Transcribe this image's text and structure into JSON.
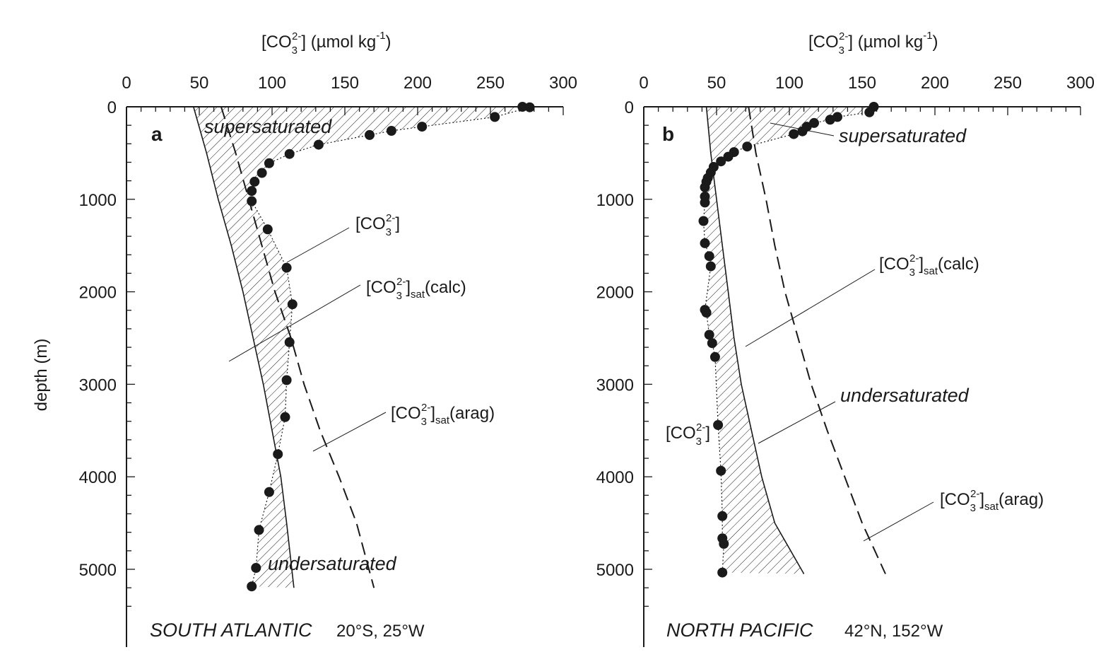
{
  "chart_data": [
    {
      "type": "scatter",
      "panel_label": "a",
      "location": "SOUTH ATLANTIC",
      "coordinates": "20°S, 25°W",
      "xlabel": "[CO3 2-] (µmol kg-1)",
      "ylabel": "depth (m)",
      "xlim": [
        0,
        300
      ],
      "ylim": [
        0,
        5500
      ],
      "y_inverted": true,
      "x_axis_position": "top",
      "x_ticks": [
        0,
        50,
        100,
        150,
        200,
        250,
        300
      ],
      "y_ticks": [
        0,
        1000,
        2000,
        3000,
        4000,
        5000
      ],
      "series": [
        {
          "name": "[CO3 2-]",
          "style": "filled circles joined by dotted line",
          "points": [
            [
              277,
              5
            ],
            [
              272,
              0
            ],
            [
              253,
              110
            ],
            [
              203,
              215
            ],
            [
              182,
              260
            ],
            [
              167,
              305
            ],
            [
              132,
              410
            ],
            [
              112,
              510
            ],
            [
              98,
              610
            ],
            [
              93,
              715
            ],
            [
              88,
              810
            ],
            [
              86,
              910
            ],
            [
              86,
              1020
            ],
            [
              97,
              1325
            ],
            [
              110,
              1740
            ],
            [
              114,
              2135
            ],
            [
              112,
              2545
            ],
            [
              110,
              2955
            ],
            [
              109,
              3355
            ],
            [
              104,
              3755
            ],
            [
              98,
              4165
            ],
            [
              91,
              4575
            ],
            [
              89,
              4985
            ],
            [
              86,
              5185
            ]
          ]
        },
        {
          "name": "[CO3 2-]sat(calc)",
          "style": "solid line",
          "points": [
            [
              46,
              0
            ],
            [
              55,
              500
            ],
            [
              63,
              1000
            ],
            [
              72,
              1500
            ],
            [
              80,
              2000
            ],
            [
              87,
              2500
            ],
            [
              94,
              3000
            ],
            [
              100,
              3500
            ],
            [
              106,
              4000
            ],
            [
              110,
              4500
            ],
            [
              115,
              5200
            ]
          ]
        },
        {
          "name": "[CO3 2-]sat(arag)",
          "style": "dashed line",
          "points": [
            [
              65,
              0
            ],
            [
              75,
              500
            ],
            [
              84,
              1000
            ],
            [
              93,
              1500
            ],
            [
              102,
              2000
            ],
            [
              113,
              2500
            ],
            [
              122,
              3000
            ],
            [
              133,
              3500
            ],
            [
              146,
              4000
            ],
            [
              158,
              4500
            ],
            [
              170,
              5200
            ]
          ]
        }
      ],
      "annotations": [
        "supersaturated",
        "undersaturated",
        "[CO3 2-]",
        "[CO3 2-]sat(calc)",
        "[CO3 2-]sat(arag)"
      ]
    },
    {
      "type": "scatter",
      "panel_label": "b",
      "location": "NORTH PACIFIC",
      "coordinates": "42°N, 152°W",
      "xlabel": "[CO3 2-] (µmol kg-1)",
      "ylabel": "",
      "xlim": [
        0,
        300
      ],
      "ylim": [
        0,
        5500
      ],
      "y_inverted": true,
      "x_axis_position": "top",
      "x_ticks": [
        0,
        50,
        100,
        150,
        200,
        250,
        300
      ],
      "y_ticks": [
        0,
        1000,
        2000,
        3000,
        4000,
        5000
      ],
      "series": [
        {
          "name": "[CO3 2-]",
          "style": "filled circles joined by dotted line",
          "points": [
            [
              158,
              0
            ],
            [
              155,
              60
            ],
            [
              133,
              110
            ],
            [
              128,
              140
            ],
            [
              117,
              175
            ],
            [
              112,
              215
            ],
            [
              109,
              265
            ],
            [
              103,
              295
            ],
            [
              71,
              430
            ],
            [
              62,
              490
            ],
            [
              58,
              540
            ],
            [
              53,
              590
            ],
            [
              48,
              650
            ],
            [
              46,
              710
            ],
            [
              44,
              770
            ],
            [
              43,
              810
            ],
            [
              42,
              870
            ],
            [
              42,
              970
            ],
            [
              42,
              1035
            ],
            [
              41,
              1235
            ],
            [
              42,
              1475
            ],
            [
              45,
              1615
            ],
            [
              46,
              1725
            ],
            [
              42,
              2195
            ],
            [
              43,
              2225
            ],
            [
              45,
              2465
            ],
            [
              47,
              2555
            ],
            [
              49,
              2705
            ],
            [
              51,
              3440
            ],
            [
              53,
              3935
            ],
            [
              54,
              4425
            ],
            [
              54,
              4665
            ],
            [
              55,
              4725
            ],
            [
              54,
              5035
            ]
          ]
        },
        {
          "name": "[CO3 2-]sat(calc)",
          "style": "solid line",
          "points": [
            [
              43,
              0
            ],
            [
              46,
              500
            ],
            [
              50,
              1000
            ],
            [
              54,
              1500
            ],
            [
              58,
              2000
            ],
            [
              62,
              2500
            ],
            [
              67,
              3000
            ],
            [
              74,
              3500
            ],
            [
              81,
              4000
            ],
            [
              90,
              4500
            ],
            [
              110,
              5050
            ]
          ]
        },
        {
          "name": "[CO3 2-]sat(arag)",
          "style": "dashed line",
          "points": [
            [
              72,
              0
            ],
            [
              77,
              500
            ],
            [
              84,
              1000
            ],
            [
              90,
              1500
            ],
            [
              97,
              2000
            ],
            [
              106,
              2500
            ],
            [
              115,
              3000
            ],
            [
              126,
              3500
            ],
            [
              138,
              4000
            ],
            [
              150,
              4500
            ],
            [
              166,
              5050
            ]
          ]
        }
      ],
      "annotations": [
        "supersaturated",
        "undersaturated",
        "[CO3 2-]",
        "[CO3 2-]sat(calc)",
        "[CO3 2-]sat(arag)"
      ]
    }
  ]
}
